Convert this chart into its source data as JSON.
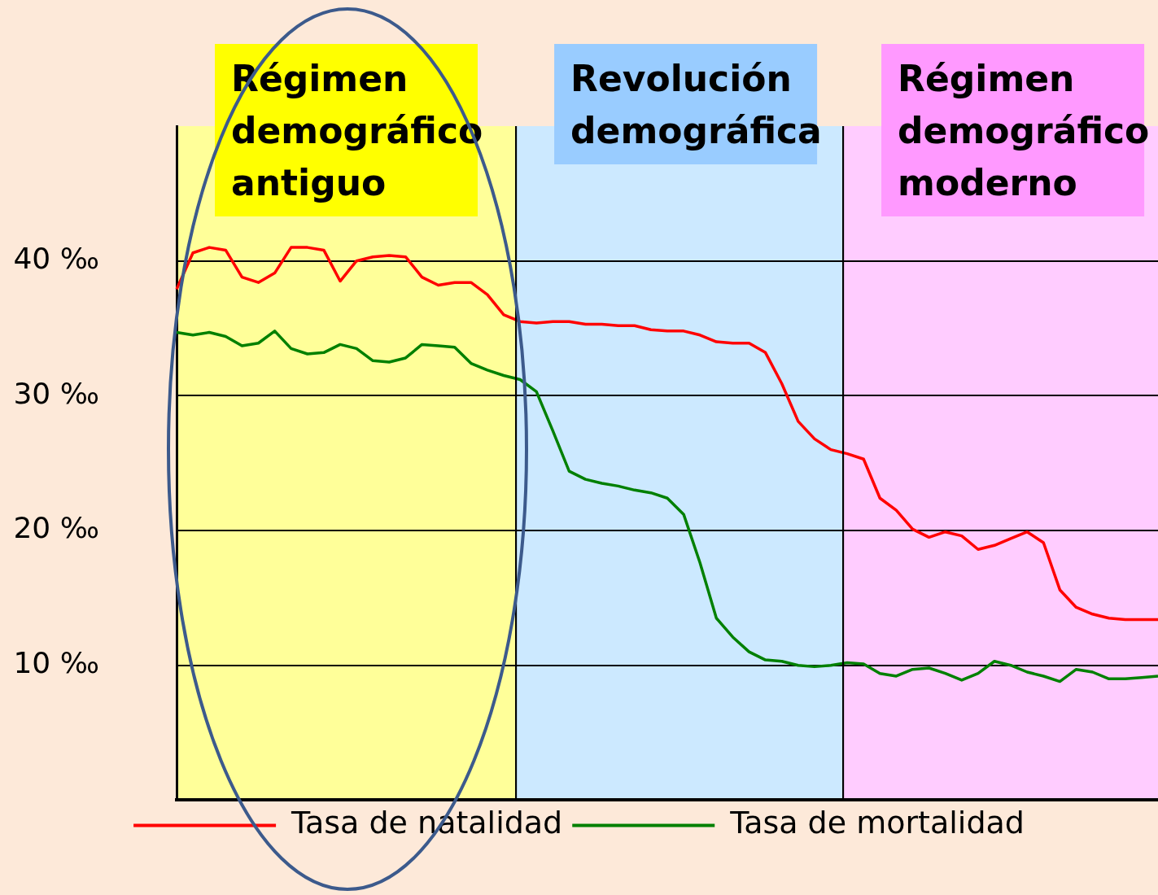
{
  "chart_data": {
    "type": "line",
    "categories": [
      null,
      null,
      null,
      null,
      null,
      null,
      null,
      null,
      null,
      null,
      null,
      null,
      null,
      null,
      null,
      null,
      null,
      null,
      null,
      null,
      null,
      null,
      null,
      null,
      null,
      null,
      null,
      null,
      null,
      null,
      null,
      null,
      null,
      null,
      null,
      null,
      null,
      null,
      null,
      null,
      null,
      null,
      null,
      null,
      null,
      null,
      null,
      null,
      null,
      null,
      null,
      null,
      null,
      null,
      null,
      null,
      null,
      null,
      null,
      null,
      null
    ],
    "series": [
      {
        "name": "Tasa de natalidad",
        "color": "#ff0000",
        "values": [
          37.9,
          40.6,
          41.0,
          40.8,
          38.8,
          38.4,
          39.1,
          41.0,
          41.0,
          40.8,
          38.5,
          40.0,
          40.3,
          40.4,
          40.3,
          38.8,
          38.2,
          38.4,
          38.4,
          37.5,
          36.0,
          35.5,
          35.4,
          35.5,
          35.5,
          35.3,
          35.3,
          35.2,
          35.2,
          34.9,
          34.8,
          34.8,
          34.5,
          34.0,
          33.9,
          33.9,
          33.2,
          30.9,
          28.1,
          26.8,
          26.0,
          25.7,
          25.3,
          22.4,
          21.5,
          20.1,
          19.5,
          19.9,
          19.6,
          18.6,
          18.9,
          19.4,
          19.9,
          19.1,
          15.6,
          14.3,
          13.8,
          13.5,
          13.4,
          13.4,
          13.4
        ]
      },
      {
        "name": "Tasa de mortalidad",
        "color": "#008000",
        "values": [
          34.7,
          34.5,
          34.7,
          34.4,
          33.7,
          33.9,
          34.8,
          33.5,
          33.1,
          33.2,
          33.8,
          33.5,
          32.6,
          32.5,
          32.8,
          33.8,
          33.7,
          33.6,
          32.4,
          31.9,
          31.5,
          31.2,
          30.3,
          27.4,
          24.4,
          23.8,
          23.5,
          23.3,
          23.0,
          22.8,
          22.4,
          21.2,
          17.6,
          13.5,
          12.1,
          11.0,
          10.4,
          10.3,
          10.0,
          9.9,
          10.0,
          10.2,
          10.1,
          9.4,
          9.2,
          9.7,
          9.8,
          9.4,
          8.9,
          9.4,
          10.3,
          10.0,
          9.5,
          9.2,
          8.8,
          9.7,
          9.5,
          9.0,
          9.0,
          9.1,
          9.2
        ]
      }
    ],
    "ylim": [
      0,
      50
    ],
    "yticks": [
      {
        "value": 10,
        "label": "10 ‰"
      },
      {
        "value": 20,
        "label": "20 ‰"
      },
      {
        "value": 30,
        "label": "30 ‰"
      },
      {
        "value": 40,
        "label": "40 ‰"
      }
    ],
    "annotations": [
      "Régimen demográfico antiguo",
      "Revolución demográfica",
      "Régimen demográfico moderno"
    ],
    "grid": "y",
    "legend": "bottom",
    "tick_labels": "y",
    "marker": "none",
    "line_style": "solid"
  }
}
